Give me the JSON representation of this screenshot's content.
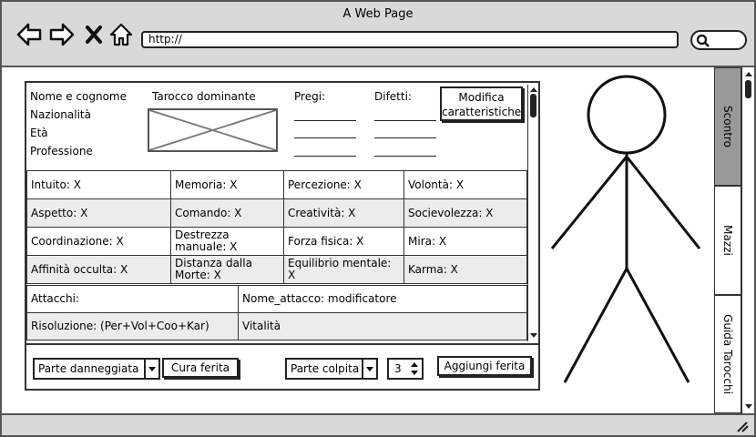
{
  "window": {
    "title": "A Web Page"
  },
  "nav": {
    "back_icon": "back-arrow-icon",
    "forward_icon": "forward-arrow-icon",
    "stop_icon": "close-icon",
    "home_icon": "home-icon",
    "url": "http://",
    "search_icon": "search-icon"
  },
  "character": {
    "name_label": "Nome e cognome",
    "nationality_label": "Nazionalità",
    "age_label": "Età",
    "profession_label": "Professione",
    "tarot_label": "Tarocco dominante",
    "strengths_label": "Pregi:",
    "flaws_label": "Difetti:",
    "modify_button": "Modifica caratteristiche"
  },
  "stats": [
    [
      "Intuito: X",
      "Memoria: X",
      "Percezione: X",
      "Volontà: X"
    ],
    [
      "Aspetto: X",
      "Comando: X",
      "Creatività: X",
      "Socievolezza: X"
    ],
    [
      "Coordinazione: X",
      "Destrezza manuale: X",
      "Forza fisica: X",
      "Mira: X"
    ],
    [
      "Affinità occulta: X",
      "Distanza dalla Morte: X",
      "Equilibrio mentale: X",
      "Karma: X"
    ]
  ],
  "extra": {
    "attacks_label": "Attacchi:",
    "attack_entry": "Nome_attacco: modificatore",
    "resolution_label": "Risoluzione: (Per+Vol+Coo+Kar)",
    "vitality_label": "Vitalità"
  },
  "wounds": {
    "damaged_part": "Parte danneggiata",
    "cure_button": "Cura ferita",
    "hit_part": "Parte colpita",
    "quantity": "3",
    "add_button": "Aggiungi ferita"
  },
  "side_tabs": [
    "Scontro",
    "Mazzi",
    "Guida Tarocchi"
  ],
  "active_tab": "Scontro"
}
